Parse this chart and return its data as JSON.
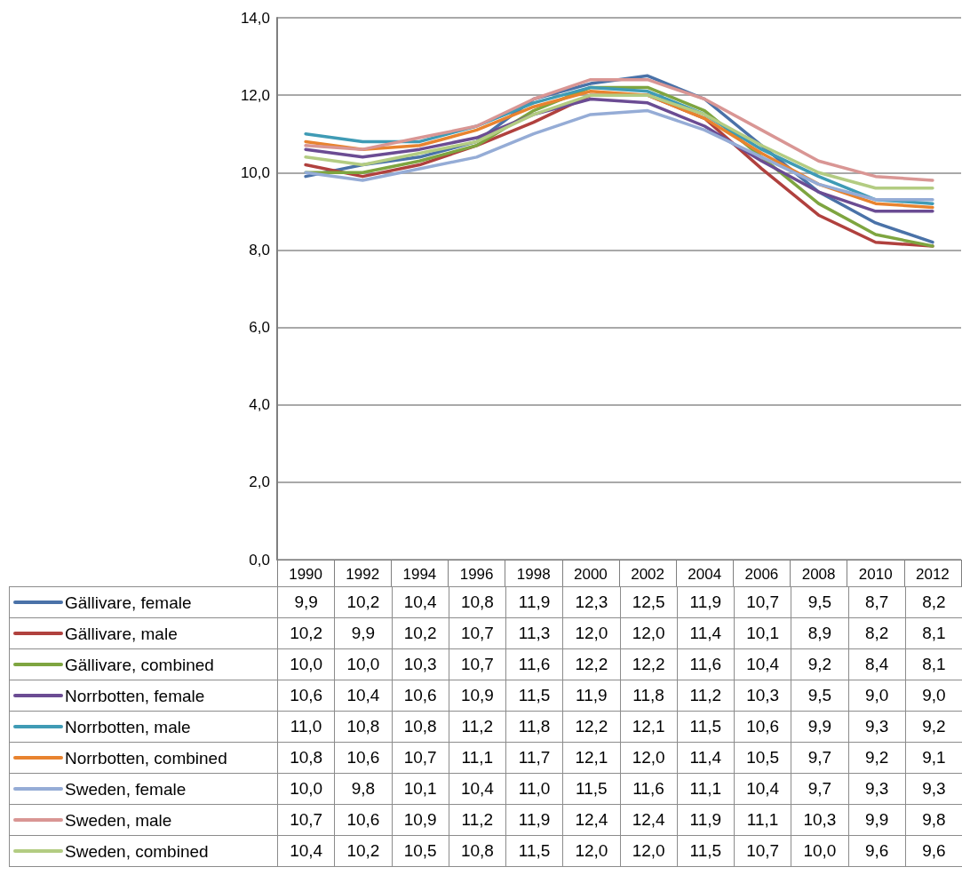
{
  "chart_data": {
    "type": "line",
    "categories": [
      "1990",
      "1992",
      "1994",
      "1996",
      "1998",
      "2000",
      "2002",
      "2004",
      "2006",
      "2008",
      "2010",
      "2012"
    ],
    "ylim": [
      0,
      14
    ],
    "yticks": [
      {
        "value": 0,
        "label": "0,0"
      },
      {
        "value": 2,
        "label": "2,0"
      },
      {
        "value": 4,
        "label": "4,0"
      },
      {
        "value": 6,
        "label": "6,0"
      },
      {
        "value": 8,
        "label": "8,0"
      },
      {
        "value": 10,
        "label": "10,0"
      },
      {
        "value": 12,
        "label": "12,0"
      },
      {
        "value": 14,
        "label": "14,0"
      }
    ],
    "grid": "y",
    "legend": "bottom",
    "marker": "none",
    "line_style": "solid",
    "series": [
      {
        "name": "Gällivare, female",
        "color": "#4a72a8",
        "values": [
          9.9,
          10.2,
          10.4,
          10.8,
          11.9,
          12.3,
          12.5,
          11.9,
          10.7,
          9.5,
          8.7,
          8.2
        ],
        "value_labels": [
          "9,9",
          "10,2",
          "10,4",
          "10,8",
          "11,9",
          "12,3",
          "12,5",
          "11,9",
          "10,7",
          "9,5",
          "8,7",
          "8,2"
        ]
      },
      {
        "name": "Gällivare, male",
        "color": "#b0413e",
        "values": [
          10.2,
          9.9,
          10.2,
          10.7,
          11.3,
          12.0,
          12.0,
          11.4,
          10.1,
          8.9,
          8.2,
          8.1
        ],
        "value_labels": [
          "10,2",
          "9,9",
          "10,2",
          "10,7",
          "11,3",
          "12,0",
          "12,0",
          "11,4",
          "10,1",
          "8,9",
          "8,2",
          "8,1"
        ]
      },
      {
        "name": "Gällivare, combined",
        "color": "#7ea540",
        "values": [
          10.0,
          10.0,
          10.3,
          10.7,
          11.6,
          12.2,
          12.2,
          11.6,
          10.4,
          9.2,
          8.4,
          8.1
        ],
        "value_labels": [
          "10,0",
          "10,0",
          "10,3",
          "10,7",
          "11,6",
          "12,2",
          "12,2",
          "11,6",
          "10,4",
          "9,2",
          "8,4",
          "8,1"
        ]
      },
      {
        "name": "Norrbotten, female",
        "color": "#6b4c93",
        "values": [
          10.6,
          10.4,
          10.6,
          10.9,
          11.5,
          11.9,
          11.8,
          11.2,
          10.3,
          9.5,
          9.0,
          9.0
        ],
        "value_labels": [
          "10,6",
          "10,4",
          "10,6",
          "10,9",
          "11,5",
          "11,9",
          "11,8",
          "11,2",
          "10,3",
          "9,5",
          "9,0",
          "9,0"
        ]
      },
      {
        "name": "Norrbotten, male",
        "color": "#3f9bb5",
        "values": [
          11.0,
          10.8,
          10.8,
          11.2,
          11.8,
          12.2,
          12.1,
          11.5,
          10.6,
          9.9,
          9.3,
          9.2
        ],
        "value_labels": [
          "11,0",
          "10,8",
          "10,8",
          "11,2",
          "11,8",
          "12,2",
          "12,1",
          "11,5",
          "10,6",
          "9,9",
          "9,3",
          "9,2"
        ]
      },
      {
        "name": "Norrbotten, combined",
        "color": "#e8832f",
        "values": [
          10.8,
          10.6,
          10.7,
          11.1,
          11.7,
          12.1,
          12.0,
          11.4,
          10.5,
          9.7,
          9.2,
          9.1
        ],
        "value_labels": [
          "10,8",
          "10,6",
          "10,7",
          "11,1",
          "11,7",
          "12,1",
          "12,0",
          "11,4",
          "10,5",
          "9,7",
          "9,2",
          "9,1"
        ]
      },
      {
        "name": "Sweden, female",
        "color": "#95acd6",
        "values": [
          10.0,
          9.8,
          10.1,
          10.4,
          11.0,
          11.5,
          11.6,
          11.1,
          10.4,
          9.7,
          9.3,
          9.3
        ],
        "value_labels": [
          "10,0",
          "9,8",
          "10,1",
          "10,4",
          "11,0",
          "11,5",
          "11,6",
          "11,1",
          "10,4",
          "9,7",
          "9,3",
          "9,3"
        ]
      },
      {
        "name": "Sweden, male",
        "color": "#d99694",
        "values": [
          10.7,
          10.6,
          10.9,
          11.2,
          11.9,
          12.4,
          12.4,
          11.9,
          11.1,
          10.3,
          9.9,
          9.8
        ],
        "value_labels": [
          "10,7",
          "10,6",
          "10,9",
          "11,2",
          "11,9",
          "12,4",
          "12,4",
          "11,9",
          "11,1",
          "10,3",
          "9,9",
          "9,8"
        ]
      },
      {
        "name": "Sweden, combined",
        "color": "#b3cc82",
        "values": [
          10.4,
          10.2,
          10.5,
          10.8,
          11.5,
          12.0,
          12.0,
          11.5,
          10.7,
          10.0,
          9.6,
          9.6
        ],
        "value_labels": [
          "10,4",
          "10,2",
          "10,5",
          "10,8",
          "11,5",
          "12,0",
          "12,0",
          "11,5",
          "10,7",
          "10,0",
          "9,6",
          "9,6"
        ]
      }
    ]
  }
}
